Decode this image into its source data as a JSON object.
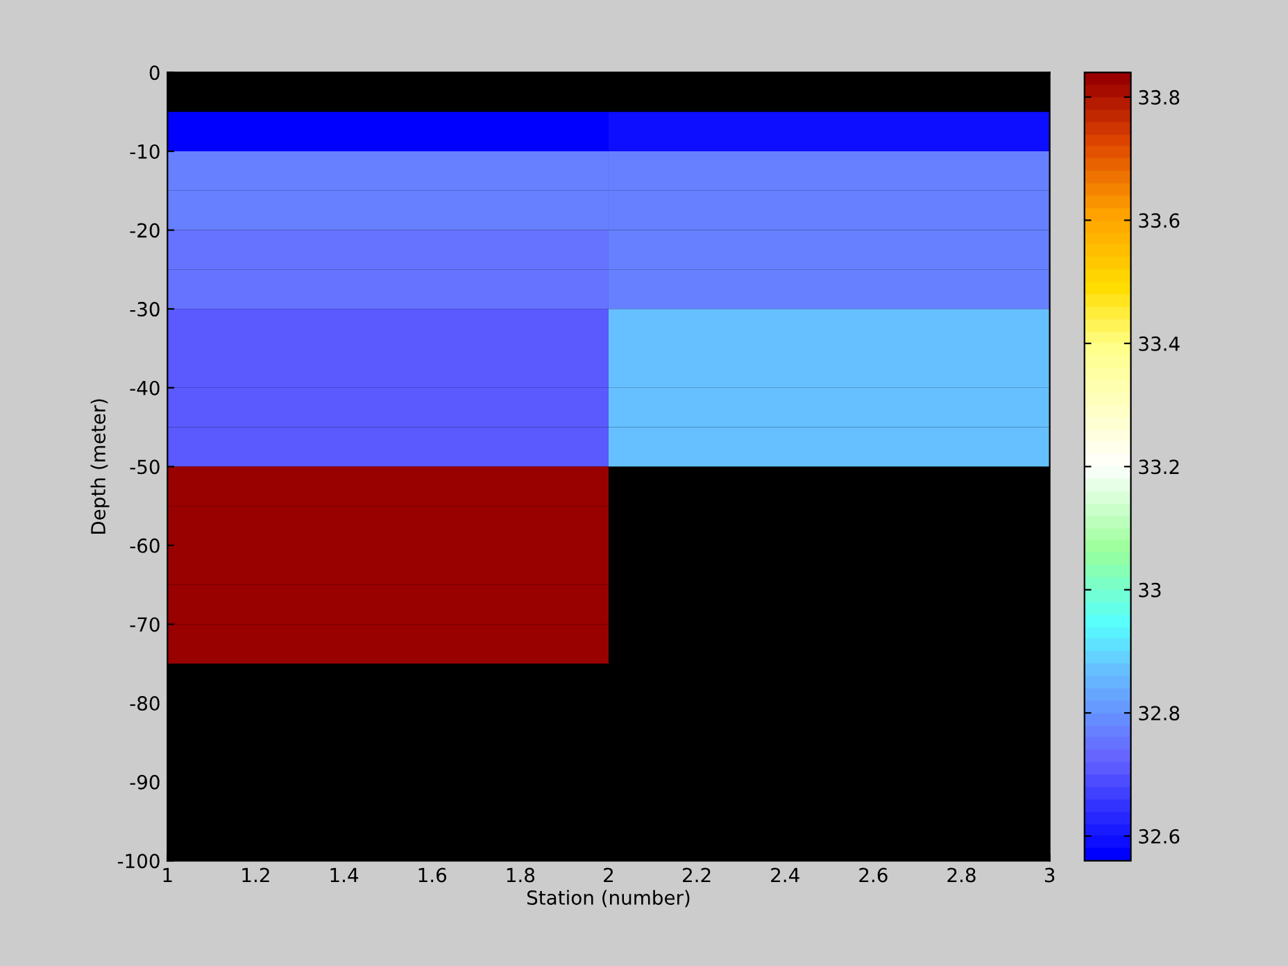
{
  "chart_data": {
    "type": "heatmap",
    "xlabel": "Station (number)",
    "ylabel": "Depth (meter)",
    "x": [
      1.5,
      2.5
    ],
    "y": [
      -7.5,
      -12.5,
      -17.5,
      -22.5,
      -27.5,
      -32.5,
      -37.5,
      -42.5,
      -47.5,
      -52.5,
      -57.5,
      -62.5,
      -67.5,
      -72.5
    ],
    "cells": [
      [
        32.57,
        32.6
      ],
      [
        32.78,
        32.78
      ],
      [
        32.78,
        32.78
      ],
      [
        32.75,
        32.78
      ],
      [
        32.75,
        32.78
      ],
      [
        32.72,
        32.87
      ],
      [
        32.72,
        32.87
      ],
      [
        32.72,
        32.87
      ],
      [
        32.72,
        32.87
      ],
      [
        33.83,
        null
      ],
      [
        33.83,
        null
      ],
      [
        33.83,
        null
      ],
      [
        33.83,
        null
      ],
      [
        33.83,
        null
      ]
    ],
    "xlim": [
      1,
      3
    ],
    "xticks": [
      1,
      1.2,
      1.4,
      1.6,
      1.8,
      2,
      2.2,
      2.4,
      2.6,
      2.8,
      3
    ],
    "ylim": [
      -100,
      0
    ],
    "yticks": [
      -100,
      -90,
      -80,
      -70,
      -60,
      -50,
      -40,
      -30,
      -20,
      -10,
      0
    ],
    "clim": [
      32.56,
      33.84
    ],
    "cticks": [
      32.6,
      32.8,
      33,
      33.2,
      33.4,
      33.6,
      33.8
    ]
  }
}
